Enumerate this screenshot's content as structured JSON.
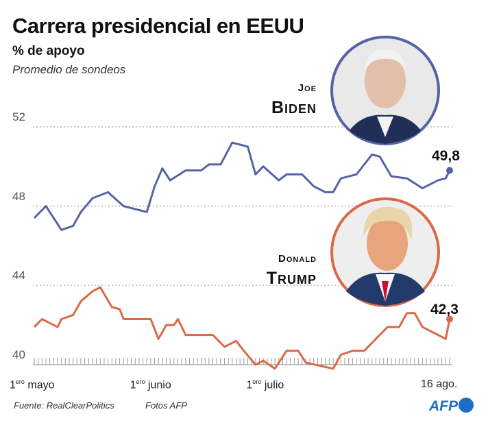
{
  "header": {
    "title": "Carrera presidencial en EEUU",
    "subtitle": "% de apoyo",
    "note": "Promedio de sondeos"
  },
  "candidates": {
    "biden": {
      "first": "Joe",
      "last": "Biden",
      "latest": "49,8",
      "color": "#5563a6",
      "photo": "Biden portrait"
    },
    "trump": {
      "first": "Donald",
      "last": "Trump",
      "latest": "42,3",
      "color": "#d96a48",
      "photo": "Trump portrait"
    }
  },
  "footer": {
    "source": "Fuente: RealClearPolitics",
    "photos": "Fotos AFP",
    "logo": "AFP"
  },
  "chart_data": {
    "type": "line",
    "title": "Carrera presidencial en EEUU",
    "ylabel": "% de apoyo",
    "ylim": [
      40,
      52
    ],
    "yticks": [
      "52",
      "48",
      "44",
      "40"
    ],
    "xlim": [
      "05-01",
      "08-16"
    ],
    "xticks": [
      {
        "date": "05-01",
        "sup": "ero",
        "label": "1",
        "suffix": " mayo"
      },
      {
        "date": "06-01",
        "sup": "ero",
        "label": "1",
        "suffix": " junio"
      },
      {
        "date": "07-01",
        "sup": "ero",
        "label": "1",
        "suffix": " julio"
      },
      {
        "date": "08-16",
        "sup": "",
        "label": "16 ago.",
        "suffix": ""
      }
    ],
    "grid": true,
    "series": [
      {
        "name": "Joe Biden",
        "color": "#5563a6",
        "x": [
          "05-01",
          "05-04",
          "05-08",
          "05-11",
          "05-13",
          "05-16",
          "05-20",
          "05-24",
          "05-30",
          "06-01",
          "06-03",
          "06-05",
          "06-09",
          "06-13",
          "06-15",
          "06-18",
          "06-21",
          "06-25",
          "06-27",
          "06-29",
          "07-03",
          "07-05",
          "07-09",
          "07-12",
          "07-15",
          "07-17",
          "07-19",
          "07-23",
          "07-27",
          "07-29",
          "08-01",
          "08-05",
          "08-09",
          "08-13",
          "08-15",
          "08-16"
        ],
        "y": [
          47.4,
          48.0,
          46.8,
          47.0,
          47.7,
          48.4,
          48.7,
          48.0,
          47.7,
          49.0,
          49.9,
          49.3,
          49.8,
          49.8,
          50.1,
          50.1,
          51.2,
          51.0,
          49.6,
          50.0,
          49.3,
          49.6,
          49.6,
          49.0,
          48.7,
          48.7,
          49.4,
          49.6,
          50.6,
          50.5,
          49.5,
          49.4,
          48.9,
          49.3,
          49.4,
          49.8
        ]
      },
      {
        "name": "Donald Trump",
        "color": "#d96a48",
        "x": [
          "05-01",
          "05-03",
          "05-07",
          "05-08",
          "05-11",
          "05-13",
          "05-16",
          "05-18",
          "05-21",
          "05-23",
          "05-24",
          "05-31",
          "06-02",
          "06-04",
          "06-06",
          "06-07",
          "06-09",
          "06-16",
          "06-19",
          "06-22",
          "06-24",
          "06-27",
          "06-29",
          "07-02",
          "07-05",
          "07-08",
          "07-10",
          "07-17",
          "07-19",
          "07-22",
          "07-25",
          "07-27",
          "07-31",
          "08-03",
          "08-05",
          "08-07",
          "08-09",
          "08-15",
          "08-16"
        ],
        "y": [
          41.9,
          42.3,
          41.9,
          42.3,
          42.5,
          43.2,
          43.7,
          43.9,
          42.9,
          42.8,
          42.3,
          42.3,
          41.3,
          42.0,
          42.0,
          42.3,
          41.5,
          41.5,
          40.9,
          41.2,
          40.7,
          40.0,
          40.2,
          39.8,
          40.7,
          40.7,
          40.1,
          39.8,
          40.5,
          40.7,
          40.7,
          41.1,
          41.9,
          41.9,
          42.6,
          42.6,
          41.9,
          41.3,
          42.3
        ]
      }
    ]
  }
}
